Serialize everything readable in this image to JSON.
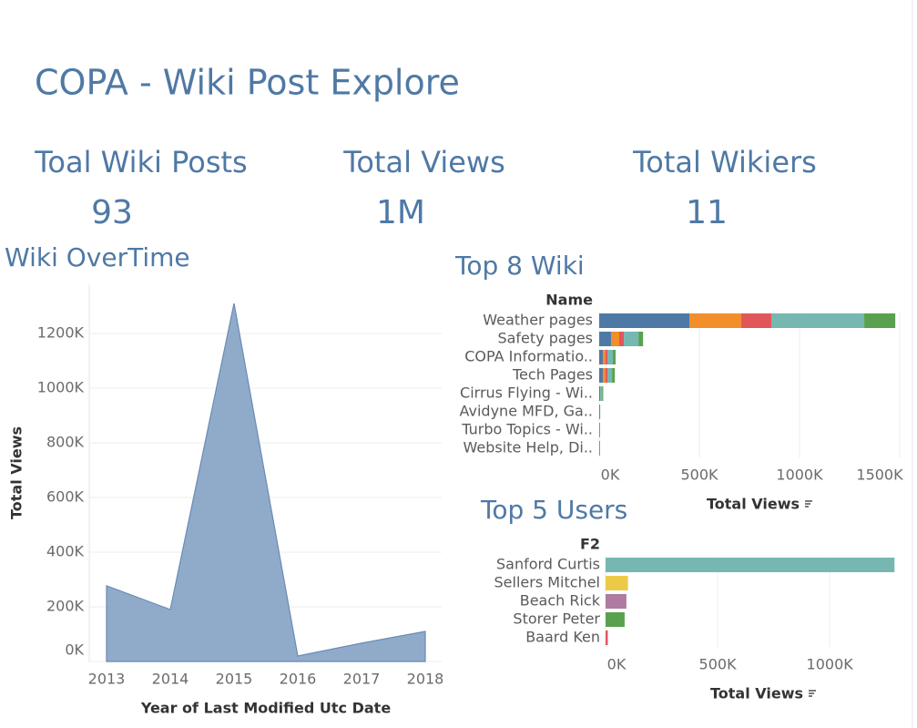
{
  "header": {
    "title": "COPA - Wiki Post Explore"
  },
  "kpis": [
    {
      "label": "Toal Wiki Posts",
      "value": "93"
    },
    {
      "label": "Total Views",
      "value": "1M"
    },
    {
      "label": "Total Wikiers",
      "value": "11"
    }
  ],
  "chart_data": [
    {
      "type": "area",
      "title": "Wiki OverTime",
      "categories": [
        "2013",
        "2014",
        "2015",
        "2016",
        "2017",
        "2018"
      ],
      "values": [
        277000,
        190000,
        1310000,
        20000,
        67000,
        110000
      ],
      "color": "#7d9cc0",
      "ylim": [
        0,
        1380000
      ],
      "yticks": [
        {
          "value": 0,
          "label": "0K"
        },
        {
          "value": 200000,
          "label": "200K"
        },
        {
          "value": 400000,
          "label": "400K"
        },
        {
          "value": 600000,
          "label": "600K"
        },
        {
          "value": 800000,
          "label": "800K"
        },
        {
          "value": 1000000,
          "label": "1000K"
        },
        {
          "value": 1200000,
          "label": "1200K"
        }
      ],
      "grid": true,
      "xlabel": "Year of Last Modified Utc Date",
      "ylabel": "Total Views"
    },
    {
      "type": "stacked-bar",
      "orientation": "horizontal",
      "title": "Top 8 Wiki",
      "category_header": "Name",
      "categories": [
        "Weather pages",
        "Safety pages",
        "COPA Informatio..",
        "Tech Pages",
        "Cirrus Flying - Wi..",
        "Avidyne MFD, Ga..",
        "Turbo Topics - Wi..",
        "Website Help, Di.."
      ],
      "series": [
        {
          "color": "#4e79a7",
          "values": [
            450000,
            59000,
            18000,
            18000,
            5000,
            0,
            0,
            0
          ]
        },
        {
          "color": "#f28e2b",
          "values": [
            259000,
            41000,
            14000,
            14000,
            0,
            0,
            0,
            0
          ]
        },
        {
          "color": "#e15759",
          "values": [
            150000,
            23000,
            9000,
            9000,
            0,
            0,
            0,
            0
          ]
        },
        {
          "color": "#76b7b2",
          "values": [
            464000,
            73000,
            27000,
            23000,
            10000,
            0,
            0,
            0
          ]
        },
        {
          "color": "#59a14f",
          "values": [
            155000,
            23000,
            14000,
            14000,
            5000,
            5000,
            4000,
            4000
          ]
        }
      ],
      "xlim": [
        0,
        1500000
      ],
      "xticks": [
        {
          "value": 0,
          "label": "0K"
        },
        {
          "value": 500000,
          "label": "500K"
        },
        {
          "value": 1000000,
          "label": "1000K"
        },
        {
          "value": 1500000,
          "label": "1500K"
        }
      ],
      "grid": true,
      "xlabel": "Total Views"
    },
    {
      "type": "bar",
      "orientation": "horizontal",
      "title": "Top 5 Users",
      "category_header": "F2",
      "categories": [
        "Sanford Curtis",
        "Sellers Mitchel",
        "Beach Rick",
        "Storer Peter",
        "Baard Ken"
      ],
      "values": [
        1289000,
        100000,
        93000,
        85000,
        10000
      ],
      "colors": [
        "#76b7b2",
        "#edc948",
        "#b07aa1",
        "#59a14f",
        "#e15759"
      ],
      "xlim": [
        0,
        1300000
      ],
      "xticks": [
        {
          "value": 0,
          "label": "0K"
        },
        {
          "value": 500000,
          "label": "500K"
        },
        {
          "value": 1000000,
          "label": "1000K"
        }
      ],
      "grid": true,
      "xlabel": "Total Views"
    }
  ]
}
